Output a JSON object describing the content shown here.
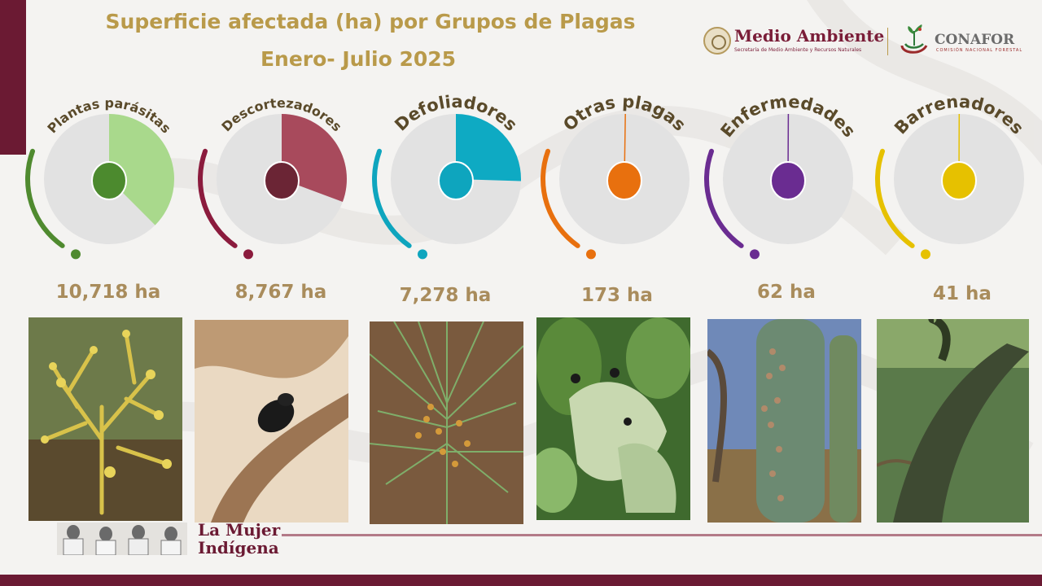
{
  "title_line1": "Superficie afectada (ha) por Grupos  de Plagas",
  "title_line2": "Enero- Julio 2025",
  "logos": {
    "medio_ambiente": "Medio Ambiente",
    "medio_ambiente_sub": "Secretaría de Medio Ambiente y Recursos Naturales",
    "conafor": "CONAFOR",
    "conafor_sub": "COMISIÓN NACIONAL FORESTAL"
  },
  "chart_data": {
    "type": "pie",
    "unit": "ha",
    "categories": [
      "Plantas parásitas",
      "Descortezadores",
      "Defoliadores",
      "Otras plagas",
      "Enfermedades",
      "Barrenadores"
    ],
    "values": [
      10718,
      8767,
      7278,
      173,
      62,
      41
    ],
    "value_labels": [
      "10,718 ha",
      "8,767 ha",
      "7,278 ha",
      "173 ha",
      "62 ha",
      "41 ha"
    ],
    "pie_fraction_shown": [
      0.375,
      0.307,
      0.255,
      0.006,
      0.002,
      0.001
    ],
    "colors": [
      "#4f8a2f",
      "#8b1b3d",
      "#0ea5be",
      "#e8700e",
      "#6a2c91",
      "#e6c100"
    ],
    "slice_colors": [
      "#a9d98c",
      "#a84a5c",
      "#0eaac3",
      "#e8700e",
      "#6a2c91",
      "#e6c100"
    ],
    "center_colors": [
      "#4c8a2e",
      "#6b2535",
      "#0ea5be",
      "#e8700e",
      "#6a2c91",
      "#e6c100"
    ]
  },
  "photos": [
    {
      "name": "plantas-parasitas-photo"
    },
    {
      "name": "descortezadores-photo"
    },
    {
      "name": "defoliadores-photo"
    },
    {
      "name": "otras-plagas-photo"
    },
    {
      "name": "enfermedades-photo"
    },
    {
      "name": "barrenadores-photo"
    }
  ],
  "footer": {
    "line1": "La Mujer",
    "line2": "Indígena"
  }
}
